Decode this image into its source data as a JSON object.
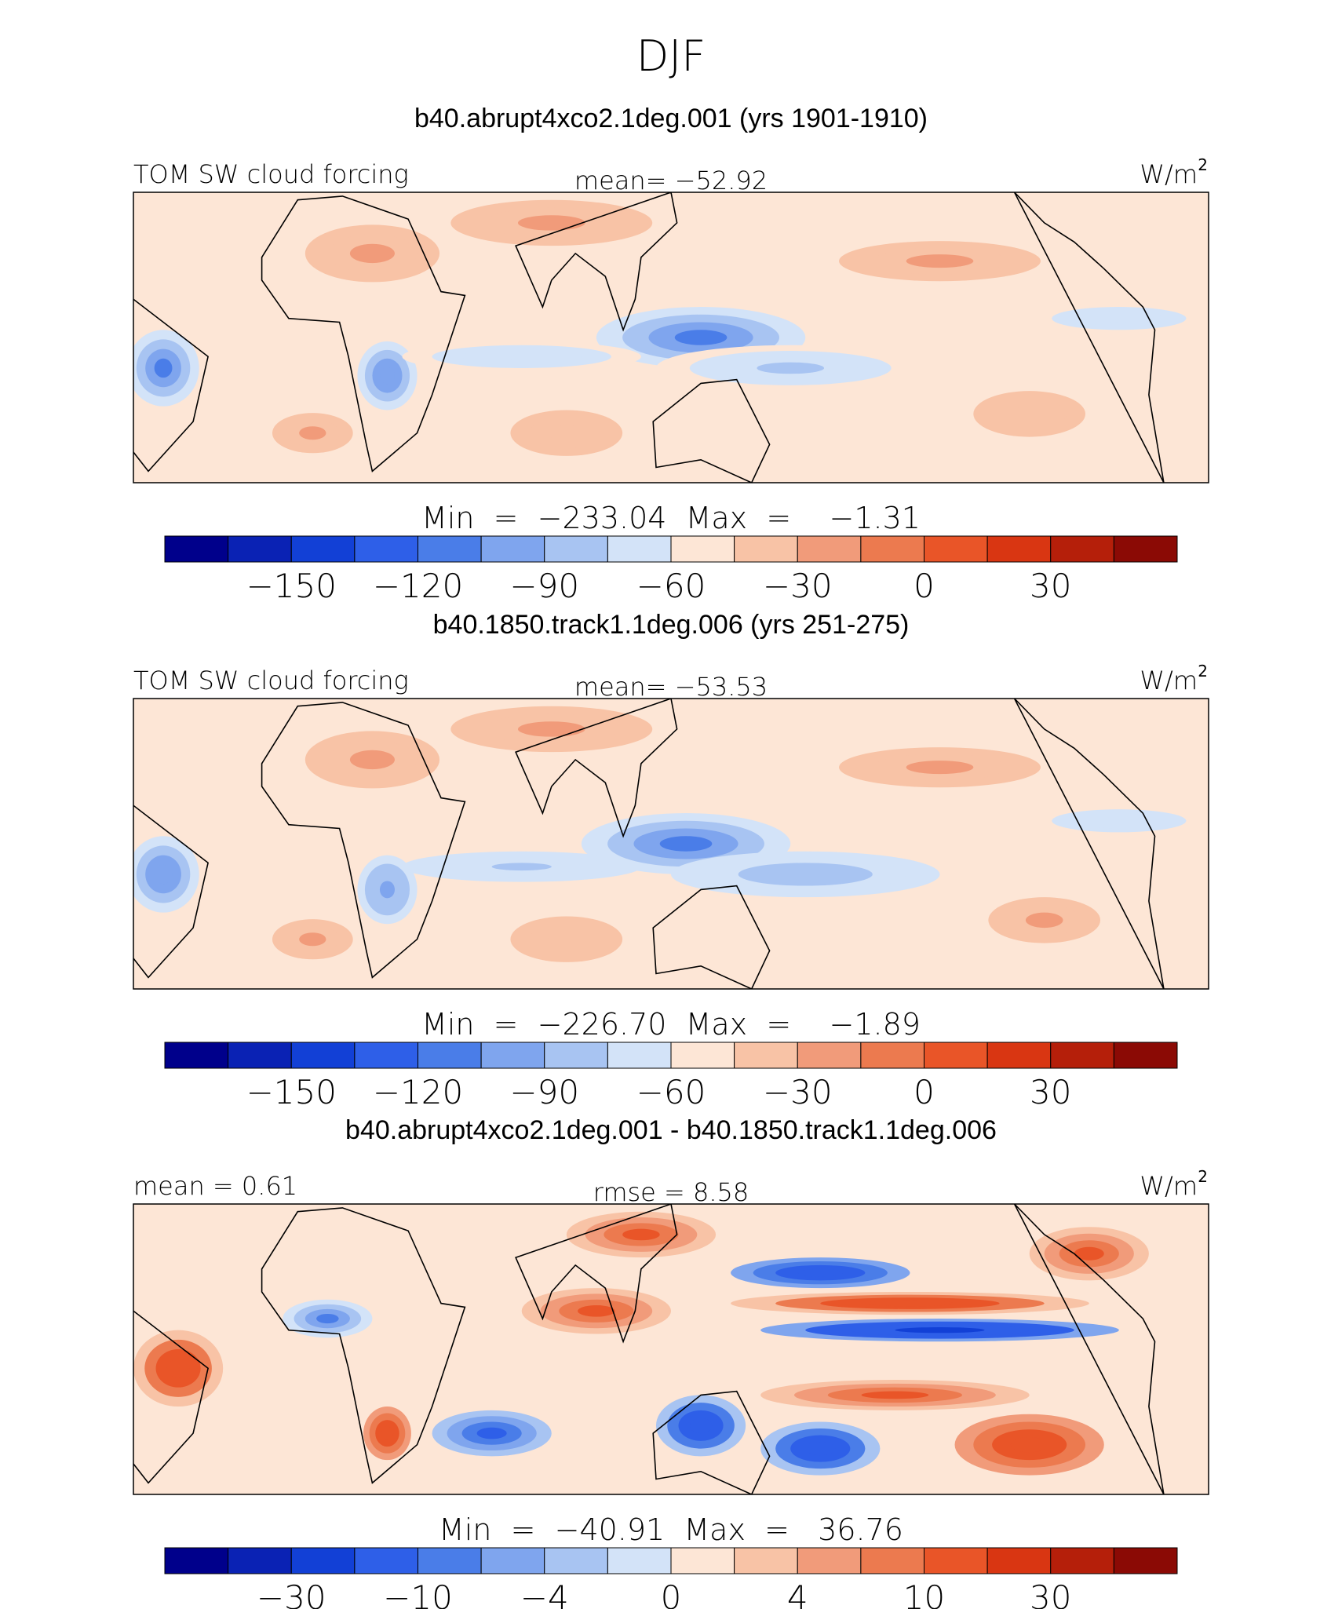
{
  "page_title": "DJF",
  "colors": {
    "palette": [
      "#00008b",
      "#0a22b4",
      "#1240d6",
      "#2e5fe8",
      "#4a7de8",
      "#7fa5ee",
      "#a8c4f2",
      "#d3e3f8",
      "#fde6d6",
      "#f8c3a6",
      "#f19b7a",
      "#ec7a4f",
      "#e95528",
      "#d93612",
      "#b51f0a",
      "#8b0a05"
    ],
    "frame": "#000000",
    "coastline": "#000000"
  },
  "chart_data": [
    {
      "type": "heatmap",
      "id": "panel-1",
      "title": "b40.abrupt4xco2.1deg.001 (yrs 1901-1910)",
      "left_label": "TOM SW cloud forcing",
      "center_label": "mean= −52.92",
      "units_label": "W/m",
      "units_exp": "2",
      "stats": "Min  =  −233.04  Max  =    −1.31",
      "mean": -52.92,
      "min": -233.04,
      "max": -1.31,
      "region": {
        "lon_range": [
          -60,
          300
        ],
        "lat_range": [
          -38,
          38
        ]
      },
      "colorbar": {
        "levels": [
          -180,
          -165,
          -150,
          -135,
          -120,
          -105,
          -90,
          -75,
          -60,
          -45,
          -30,
          -15,
          0,
          15,
          30,
          45,
          60
        ],
        "tick_labels": [
          "−150",
          "−120",
          "−90",
          "−60",
          "−30",
          "0",
          "30"
        ],
        "tick_values": [
          -150,
          -120,
          -90,
          -60,
          -30,
          0,
          30
        ]
      },
      "features": [
        {
          "lon": 20,
          "lat": 22,
          "value": -25,
          "sx": 30,
          "sy": 10
        },
        {
          "lon": 80,
          "lat": 30,
          "value": -25,
          "sx": 45,
          "sy": 8
        },
        {
          "lon": 210,
          "lat": 20,
          "value": -30,
          "sx": 45,
          "sy": 7
        },
        {
          "lon": 130,
          "lat": 0,
          "value": -115,
          "sx": 35,
          "sy": 8
        },
        {
          "lon": 160,
          "lat": -8,
          "value": -80,
          "sx": 45,
          "sy": 6
        },
        {
          "lon": -50,
          "lat": -8,
          "value": -110,
          "sx": 12,
          "sy": 10
        },
        {
          "lon": 25,
          "lat": -10,
          "value": -105,
          "sx": 10,
          "sy": 9
        },
        {
          "lon": 70,
          "lat": -5,
          "value": -75,
          "sx": 40,
          "sy": 4
        },
        {
          "lon": 270,
          "lat": 5,
          "value": -75,
          "sx": 30,
          "sy": 4
        },
        {
          "lon": 85,
          "lat": -25,
          "value": -35,
          "sx": 25,
          "sy": 8
        },
        {
          "lon": 0,
          "lat": -25,
          "value": -30,
          "sx": 18,
          "sy": 7
        },
        {
          "lon": 240,
          "lat": -20,
          "value": -35,
          "sx": 25,
          "sy": 8
        }
      ]
    },
    {
      "type": "heatmap",
      "id": "panel-2",
      "title": "b40.1850.track1.1deg.006 (yrs 251-275)",
      "left_label": "TOM SW cloud forcing",
      "center_label": "mean= −53.53",
      "units_label": "W/m",
      "units_exp": "2",
      "stats": "Min  =  −226.70  Max  =    −1.89",
      "mean": -53.53,
      "min": -226.7,
      "max": -1.89,
      "region": {
        "lon_range": [
          -60,
          300
        ],
        "lat_range": [
          -38,
          38
        ]
      },
      "colorbar": {
        "levels": [
          -180,
          -165,
          -150,
          -135,
          -120,
          -105,
          -90,
          -75,
          -60,
          -45,
          -30,
          -15,
          0,
          15,
          30,
          45,
          60
        ],
        "tick_labels": [
          "−150",
          "−120",
          "−90",
          "−60",
          "−30",
          "0",
          "30"
        ],
        "tick_values": [
          -150,
          -120,
          -90,
          -60,
          -30,
          0,
          30
        ]
      },
      "features": [
        {
          "lon": 20,
          "lat": 22,
          "value": -25,
          "sx": 30,
          "sy": 10
        },
        {
          "lon": 80,
          "lat": 30,
          "value": -25,
          "sx": 45,
          "sy": 8
        },
        {
          "lon": 210,
          "lat": 20,
          "value": -28,
          "sx": 45,
          "sy": 7
        },
        {
          "lon": 125,
          "lat": 0,
          "value": -110,
          "sx": 35,
          "sy": 8
        },
        {
          "lon": 165,
          "lat": -8,
          "value": -85,
          "sx": 45,
          "sy": 6
        },
        {
          "lon": -50,
          "lat": -8,
          "value": -105,
          "sx": 12,
          "sy": 10
        },
        {
          "lon": 25,
          "lat": -12,
          "value": -100,
          "sx": 10,
          "sy": 9
        },
        {
          "lon": 70,
          "lat": -6,
          "value": -80,
          "sx": 40,
          "sy": 4
        },
        {
          "lon": 270,
          "lat": 6,
          "value": -70,
          "sx": 30,
          "sy": 4
        },
        {
          "lon": 85,
          "lat": -25,
          "value": -35,
          "sx": 25,
          "sy": 8
        },
        {
          "lon": 0,
          "lat": -25,
          "value": -30,
          "sx": 18,
          "sy": 7
        },
        {
          "lon": 245,
          "lat": -20,
          "value": -30,
          "sx": 25,
          "sy": 8
        }
      ]
    },
    {
      "type": "heatmap",
      "id": "panel-3",
      "title": "b40.abrupt4xco2.1deg.001 - b40.1850.track1.1deg.006",
      "left_label": "mean =    0.61",
      "center_label": "rmse =    8.58",
      "units_label": "W/m",
      "units_exp": "2",
      "stats": "Min  =  −40.91  Max  =   36.76",
      "mean": 0.61,
      "rmse": 8.58,
      "min": -40.91,
      "max": 36.76,
      "region": {
        "lon_range": [
          -60,
          300
        ],
        "lat_range": [
          -38,
          38
        ]
      },
      "colorbar": {
        "levels": [
          -50,
          -40,
          -30,
          -20,
          -10,
          -6,
          -4,
          -2,
          0,
          2,
          4,
          6,
          10,
          20,
          30,
          40,
          50
        ],
        "tick_labels": [
          "−30",
          "−10",
          "−4",
          "0",
          "4",
          "10",
          "30"
        ],
        "tick_values": [
          -30,
          -10,
          -4,
          0,
          4,
          10,
          30
        ]
      },
      "features": [
        {
          "lon": 170,
          "lat": 20,
          "value": -18,
          "sx": 30,
          "sy": 4
        },
        {
          "lon": 210,
          "lat": 5,
          "value": -22,
          "sx": 60,
          "sy": 3
        },
        {
          "lon": 200,
          "lat": 12,
          "value": 14,
          "sx": 60,
          "sy": 3
        },
        {
          "lon": 195,
          "lat": -12,
          "value": 10,
          "sx": 45,
          "sy": 4
        },
        {
          "lon": 240,
          "lat": -25,
          "value": 16,
          "sx": 25,
          "sy": 8
        },
        {
          "lon": 170,
          "lat": -26,
          "value": -14,
          "sx": 20,
          "sy": 7
        },
        {
          "lon": 130,
          "lat": -20,
          "value": -14,
          "sx": 15,
          "sy": 8
        },
        {
          "lon": -45,
          "lat": -5,
          "value": 14,
          "sx": 15,
          "sy": 10
        },
        {
          "lon": 25,
          "lat": -22,
          "value": 18,
          "sx": 8,
          "sy": 7
        },
        {
          "lon": 5,
          "lat": 8,
          "value": -8,
          "sx": 15,
          "sy": 5
        },
        {
          "lon": 95,
          "lat": 10,
          "value": 10,
          "sx": 25,
          "sy": 6
        },
        {
          "lon": 110,
          "lat": 30,
          "value": 10,
          "sx": 25,
          "sy": 6
        },
        {
          "lon": 60,
          "lat": -22,
          "value": -12,
          "sx": 20,
          "sy": 6
        },
        {
          "lon": 260,
          "lat": 25,
          "value": 10,
          "sx": 20,
          "sy": 7
        }
      ]
    }
  ]
}
